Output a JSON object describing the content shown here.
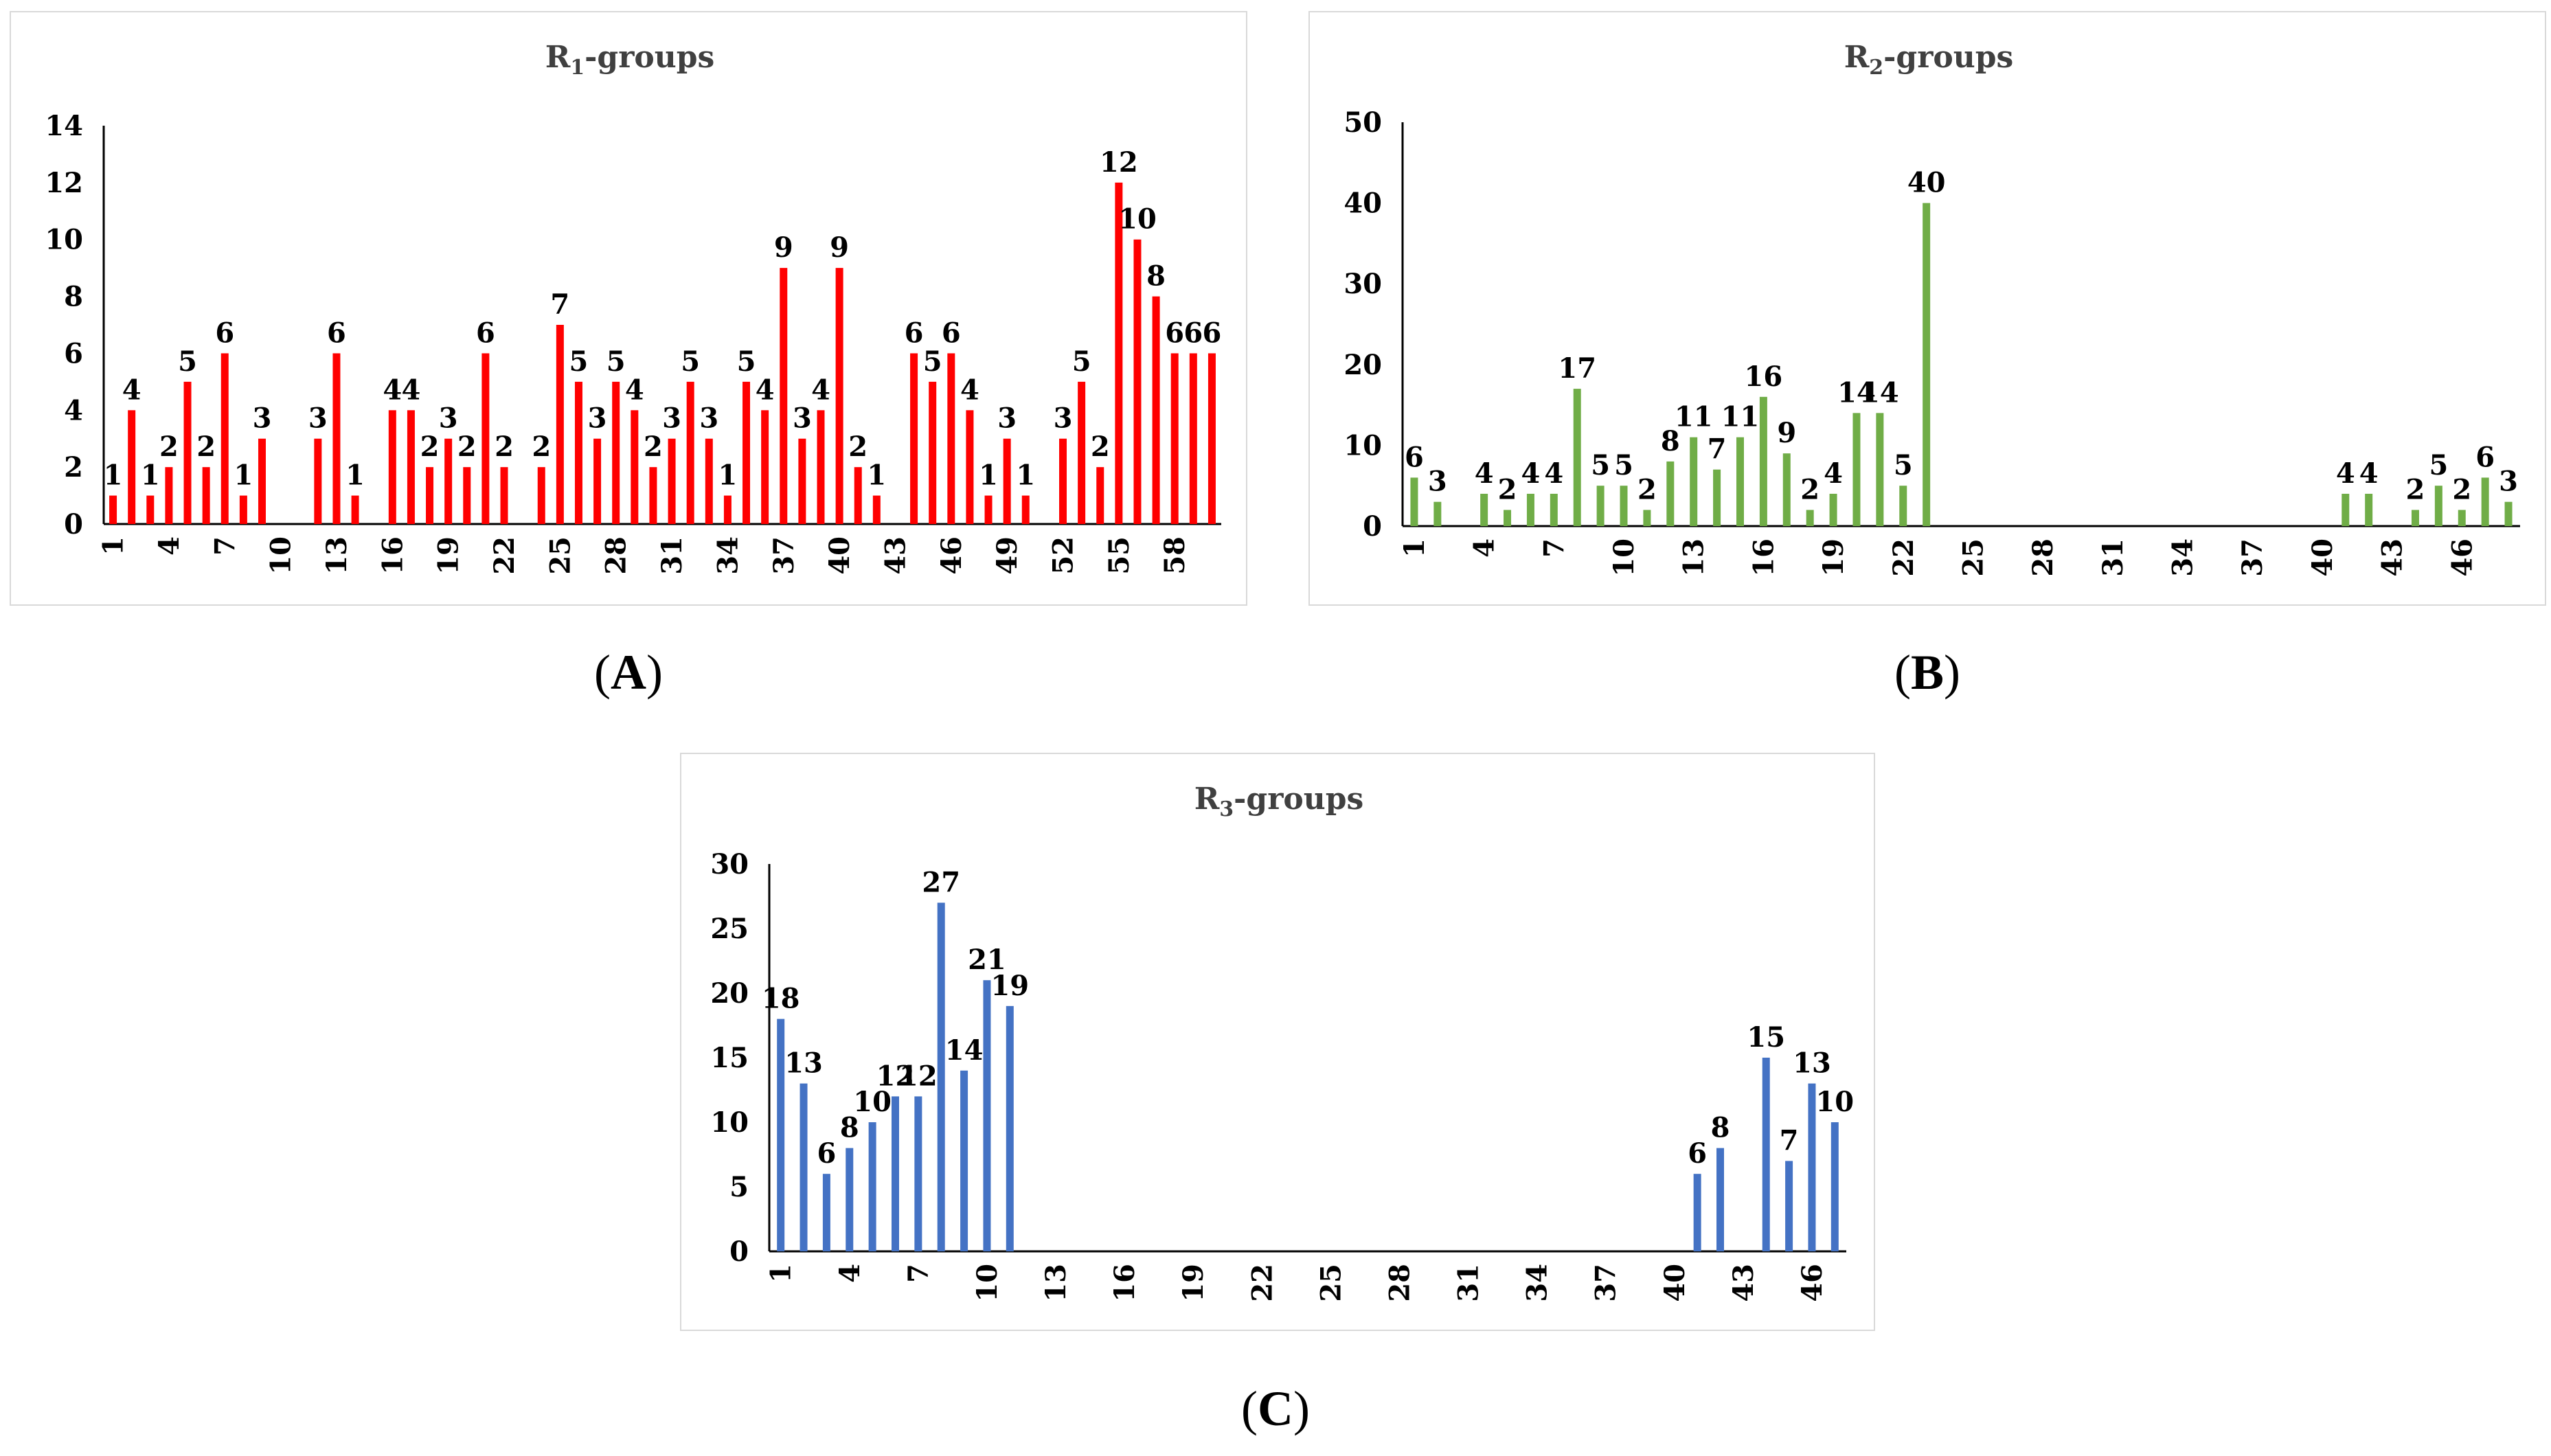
{
  "figure": {
    "labels": [
      "(A)",
      "(B)",
      "(C)"
    ]
  },
  "chart_data": [
    {
      "type": "bar",
      "title": "R1-groups",
      "title_base": "R",
      "title_sub": "1",
      "title_rest": "-groups",
      "color": "#ff0000",
      "x": [
        1,
        2,
        3,
        4,
        5,
        6,
        7,
        8,
        9,
        10,
        11,
        12,
        13,
        14,
        15,
        16,
        17,
        18,
        19,
        20,
        21,
        22,
        23,
        24,
        25,
        26,
        27,
        28,
        29,
        30,
        31,
        32,
        33,
        34,
        35,
        36,
        37,
        38,
        39,
        40,
        41,
        42,
        43,
        44,
        45,
        46,
        47,
        48,
        49,
        50,
        51,
        52,
        53,
        54,
        55,
        56,
        57,
        58,
        59,
        60
      ],
      "values": [
        1,
        4,
        1,
        2,
        5,
        2,
        6,
        1,
        3,
        null,
        null,
        3,
        6,
        1,
        null,
        4,
        4,
        2,
        3,
        2,
        6,
        2,
        null,
        2,
        7,
        5,
        3,
        5,
        4,
        2,
        3,
        5,
        3,
        1,
        5,
        4,
        9,
        3,
        4,
        9,
        2,
        1,
        null,
        6,
        5,
        6,
        4,
        1,
        3,
        1,
        null,
        3,
        5,
        2,
        12,
        10,
        8,
        6,
        6,
        6
      ],
      "data_labels": [
        "1",
        "4",
        "1",
        "2",
        "5",
        "2",
        "6",
        "1",
        "3",
        "",
        "",
        "3",
        "6",
        "1",
        "",
        "4",
        "4",
        "2",
        "3",
        "2",
        "6",
        "2",
        "",
        "2",
        "7",
        "5",
        "3",
        "5",
        "4",
        "2",
        "3",
        "5",
        "3",
        "1",
        "5",
        "4",
        "9",
        "3",
        "4",
        "9",
        "2",
        "1",
        "",
        "6",
        "5",
        "6",
        "4",
        "1",
        "3",
        "1",
        "",
        "3",
        "5",
        "2",
        "12",
        "10",
        "8",
        "6",
        "6",
        "6"
      ],
      "xticks": [
        1,
        4,
        7,
        10,
        13,
        16,
        19,
        22,
        25,
        28,
        31,
        34,
        37,
        40,
        43,
        46,
        49,
        52,
        55,
        58
      ],
      "ylim": [
        0,
        14
      ],
      "yticks": [
        0,
        2,
        4,
        6,
        8,
        10,
        12,
        14
      ],
      "xlabel": "",
      "ylabel": ""
    },
    {
      "type": "bar",
      "title": "R2-groups",
      "title_base": "R",
      "title_sub": "2",
      "title_rest": "-groups",
      "color": "#70ad47",
      "x": [
        1,
        2,
        3,
        4,
        5,
        6,
        7,
        8,
        9,
        10,
        11,
        12,
        13,
        14,
        15,
        16,
        17,
        18,
        19,
        20,
        21,
        22,
        23,
        24,
        25,
        26,
        27,
        28,
        29,
        30,
        31,
        32,
        33,
        34,
        35,
        36,
        37,
        38,
        39,
        40,
        41,
        42,
        43,
        44,
        45,
        46,
        47,
        48
      ],
      "values": [
        6,
        3,
        null,
        4,
        2,
        4,
        4,
        17,
        5,
        5,
        2,
        8,
        11,
        7,
        11,
        16,
        9,
        2,
        4,
        14,
        14,
        5,
        40,
        null,
        null,
        null,
        null,
        null,
        null,
        null,
        null,
        null,
        null,
        null,
        null,
        null,
        null,
        null,
        null,
        null,
        4,
        4,
        null,
        2,
        5,
        2,
        6,
        3
      ],
      "data_labels": [
        "6",
        "3",
        "",
        "4",
        "2",
        "4",
        "4",
        "17",
        "5",
        "5",
        "2",
        "8",
        "11",
        "7",
        "11",
        "16",
        "9",
        "2",
        "4",
        "14",
        "14",
        "5",
        "40",
        "",
        "",
        "",
        "",
        "",
        "",
        "",
        "",
        "",
        "",
        "",
        "",
        "",
        "",
        "",
        "",
        "",
        "4",
        "4",
        "",
        "2",
        "5",
        "2",
        "6",
        "3"
      ],
      "xticks": [
        1,
        4,
        7,
        10,
        13,
        16,
        19,
        22,
        25,
        28,
        31,
        34,
        37,
        40,
        43,
        46
      ],
      "ylim": [
        0,
        50
      ],
      "yticks": [
        0,
        10,
        20,
        30,
        40,
        50
      ],
      "xlabel": "",
      "ylabel": ""
    },
    {
      "type": "bar",
      "title": "R3-groups",
      "title_base": "R",
      "title_sub": "3",
      "title_rest": "-groups",
      "color": "#4472c4",
      "x": [
        1,
        2,
        3,
        4,
        5,
        6,
        7,
        8,
        9,
        10,
        11,
        12,
        13,
        14,
        15,
        16,
        17,
        18,
        19,
        20,
        21,
        22,
        23,
        24,
        25,
        26,
        27,
        28,
        29,
        30,
        31,
        32,
        33,
        34,
        35,
        36,
        37,
        38,
        39,
        40,
        41,
        42,
        43,
        44,
        45,
        46,
        47
      ],
      "values": [
        18,
        13,
        6,
        8,
        10,
        12,
        12,
        27,
        14,
        21,
        19,
        null,
        null,
        null,
        null,
        null,
        null,
        null,
        null,
        null,
        null,
        null,
        null,
        null,
        null,
        null,
        null,
        null,
        null,
        null,
        null,
        null,
        null,
        null,
        null,
        null,
        null,
        null,
        null,
        null,
        6,
        8,
        null,
        15,
        7,
        13,
        10
      ],
      "data_labels": [
        "18",
        "13",
        "6",
        "8",
        "10",
        "12",
        "12",
        "27",
        "14",
        "21",
        "19",
        "",
        "",
        "",
        "",
        "",
        "",
        "",
        "",
        "",
        "",
        "",
        "",
        "",
        "",
        "",
        "",
        "",
        "",
        "",
        "",
        "",
        "",
        "",
        "",
        "",
        "",
        "",
        "",
        "",
        "6",
        "8",
        "",
        "15",
        "7",
        "13",
        "10"
      ],
      "xticks": [
        1,
        4,
        7,
        10,
        13,
        16,
        19,
        22,
        25,
        28,
        31,
        34,
        37,
        40,
        43,
        46
      ],
      "ylim": [
        0,
        30
      ],
      "yticks": [
        0,
        5,
        10,
        15,
        20,
        25,
        30
      ],
      "xlabel": "",
      "ylabel": ""
    }
  ]
}
